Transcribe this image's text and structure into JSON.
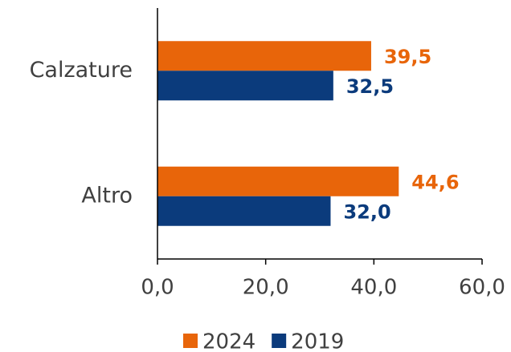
{
  "chart_data": {
    "type": "hbar",
    "categories": [
      "Calzature",
      "Altro"
    ],
    "series": [
      {
        "name": "2024",
        "color": "#e8650a",
        "values": [
          39.5,
          44.6
        ],
        "value_labels": [
          "39,5",
          "44,6"
        ]
      },
      {
        "name": "2019",
        "color": "#0b3b7c",
        "values": [
          32.5,
          32.0
        ],
        "value_labels": [
          "32,5",
          "32,0"
        ]
      }
    ],
    "xlim": [
      0,
      60
    ],
    "xticks": [
      {
        "value": 0,
        "label": "0,0"
      },
      {
        "value": 20,
        "label": "20,0"
      },
      {
        "value": 40,
        "label": "40,0"
      },
      {
        "value": 60,
        "label": "60,0"
      }
    ],
    "legend": "bottom"
  }
}
